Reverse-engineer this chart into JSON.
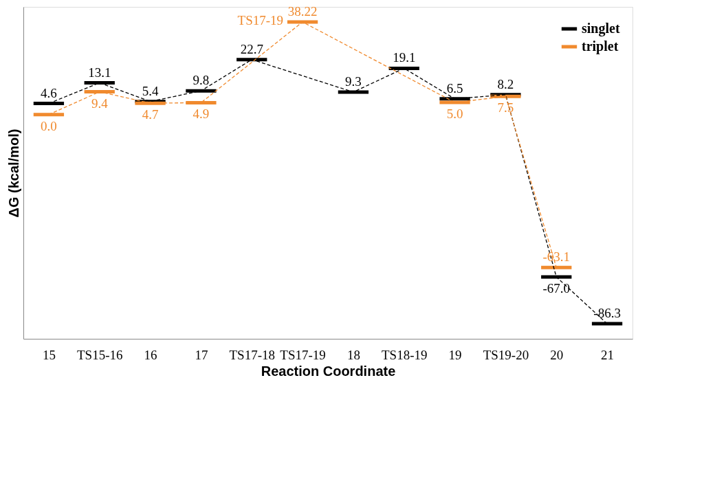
{
  "chart_data": {
    "type": "line",
    "xlabel": "Reaction  Coordinate",
    "ylabel": "ΔG (kcal/mol)",
    "categories": [
      "15",
      "TS15-16",
      "16",
      "17",
      "TS17-18",
      "TS17-19",
      "18",
      "TS18-19",
      "19",
      "TS19-20",
      "20",
      "21"
    ],
    "series": [
      {
        "name": "singlet",
        "color": "#000000",
        "values": [
          4.6,
          13.1,
          5.4,
          9.8,
          22.7,
          null,
          9.3,
          19.1,
          6.5,
          8.2,
          -67.0,
          -86.3
        ],
        "value_labels": [
          "4.6",
          "13.1",
          "5.4",
          "9.8",
          "22.7",
          null,
          "9.3",
          "19.1",
          "6.5",
          "8.2",
          "-67.0",
          "-86.3"
        ]
      },
      {
        "name": "triplet",
        "color": "#f08a2e",
        "values": [
          0.0,
          9.4,
          4.7,
          4.9,
          null,
          38.22,
          null,
          null,
          5.0,
          7.5,
          -63.1,
          null
        ],
        "value_labels": [
          "0.0",
          "9.4",
          "4.7",
          "4.9",
          null,
          "38.22",
          null,
          null,
          "5.0",
          "7.5",
          "-63.1",
          null
        ]
      }
    ],
    "annotations": [
      {
        "text": "TS17-19",
        "x": "TS17-19",
        "y": 38.22
      }
    ],
    "line_style": "dashed",
    "grid": false,
    "legend": "top right",
    "tick_labels": "x"
  }
}
